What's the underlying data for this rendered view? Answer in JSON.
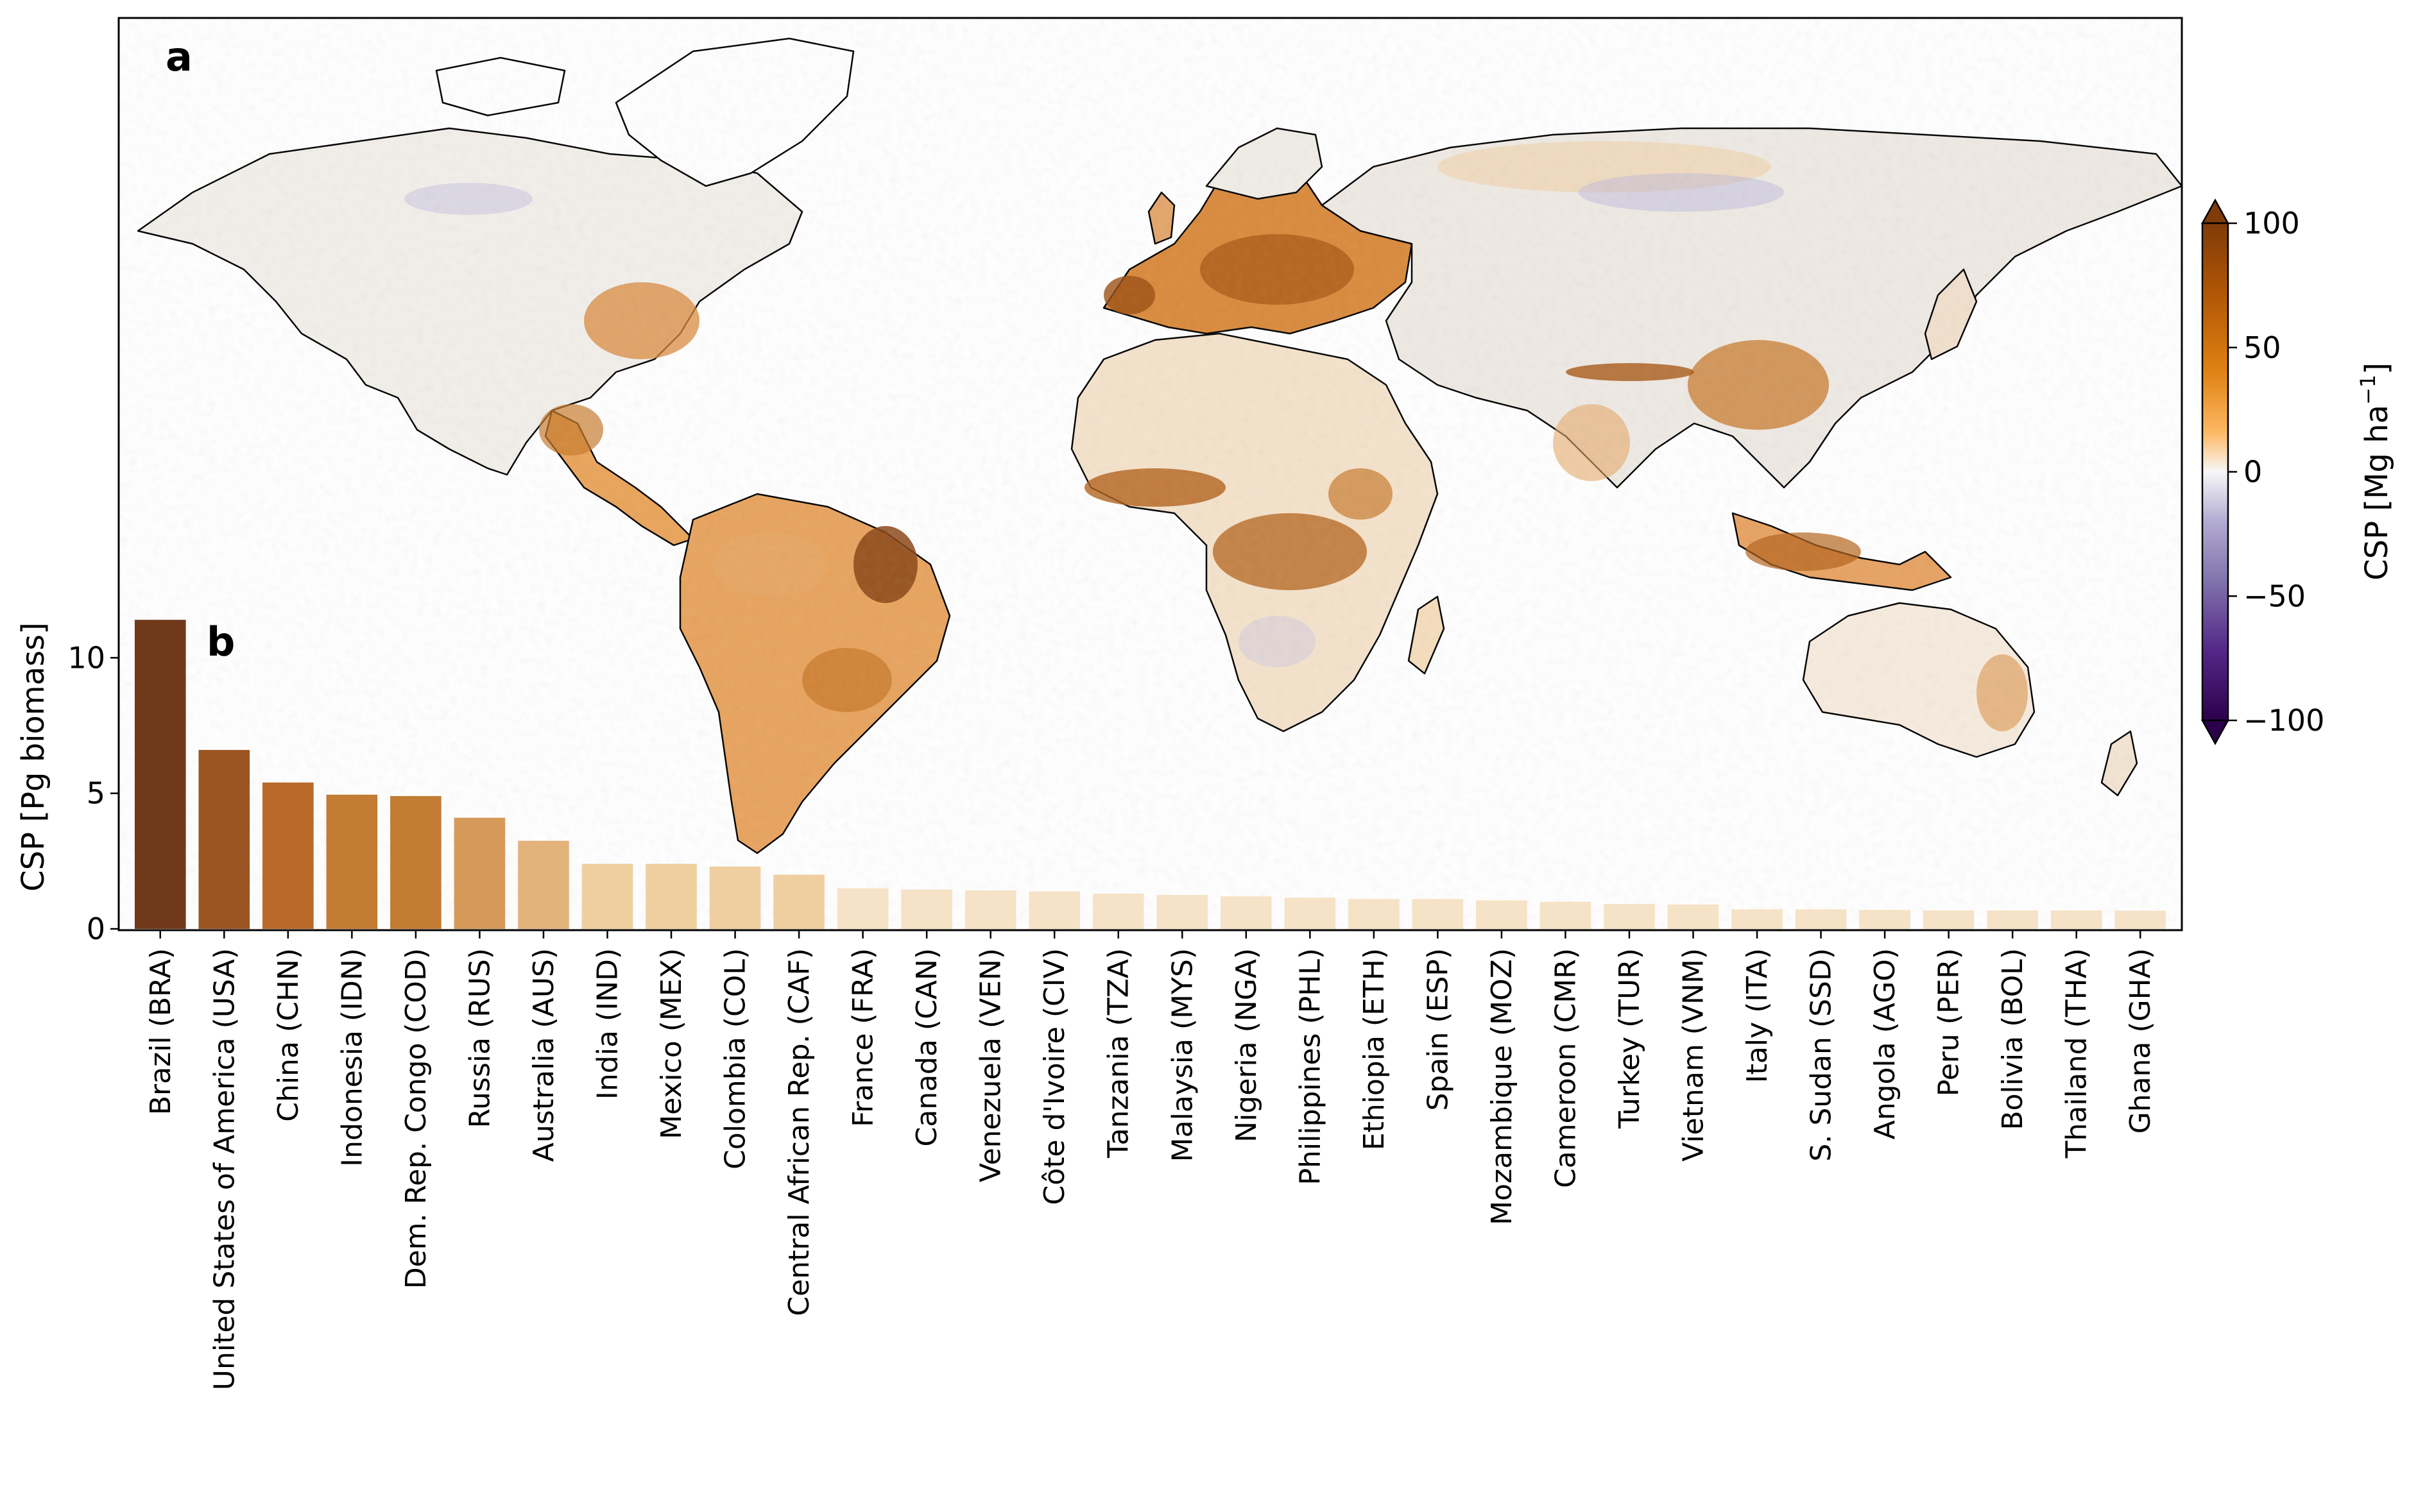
{
  "panel_a_label": "a",
  "panel_b_label": "b",
  "colorbar": {
    "label": "CSP [Mg ha",
    "label_sup": "−1",
    "label_close": "]",
    "ticks": [
      "100",
      "50",
      "0",
      "−50",
      "−100"
    ],
    "tick_values": [
      100,
      50,
      0,
      -50,
      -100
    ],
    "min": -100,
    "max": 100,
    "colors": {
      "high": "#7f3b08",
      "mid": "#f7f7f7",
      "low": "#2d004b"
    }
  },
  "map": {
    "type": "heatmap",
    "description_ref": "global gridded CSP map",
    "colors": {
      "land_outline": "#000000",
      "positive": "#c8782a",
      "negative": "#8080c8"
    }
  },
  "chart_data": {
    "type": "bar",
    "ylabel": "CSP [Pg biomass]",
    "ylim": [
      0,
      11.5
    ],
    "yticks": [
      0,
      5,
      10
    ],
    "ytick_labels": [
      "0",
      "5",
      "10"
    ],
    "categories": [
      "Brazil (BRA)",
      "United States of America (USA)",
      "China (CHN)",
      "Indonesia (IDN)",
      "Dem. Rep. Congo (COD)",
      "Russia (RUS)",
      "Australia (AUS)",
      "India (IND)",
      "Mexico (MEX)",
      "Colombia (COL)",
      "Central African Rep. (CAF)",
      "France (FRA)",
      "Canada (CAN)",
      "Venezuela (VEN)",
      "Côte d'Ivoire (CIV)",
      "Tanzania (TZA)",
      "Malaysia (MYS)",
      "Nigeria (NGA)",
      "Philippines (PHL)",
      "Ethiopia (ETH)",
      "Spain (ESP)",
      "Mozambique (MOZ)",
      "Cameroon (CMR)",
      "Turkey (TUR)",
      "Vietnam (VNM)",
      "Italy (ITA)",
      "S. Sudan (SSD)",
      "Angola (AGO)",
      "Peru (PER)",
      "Bolivia (BOL)",
      "Thailand (THA)",
      "Ghana (GHA)"
    ],
    "values": [
      11.4,
      6.6,
      5.4,
      4.95,
      4.9,
      4.1,
      3.25,
      2.4,
      2.4,
      2.3,
      2.0,
      1.5,
      1.45,
      1.42,
      1.38,
      1.3,
      1.25,
      1.2,
      1.15,
      1.1,
      1.1,
      1.05,
      1.0,
      0.92,
      0.9,
      0.72,
      0.72,
      0.7,
      0.68,
      0.68,
      0.68,
      0.67
    ],
    "bar_colors": [
      "#70391a",
      "#9a5522",
      "#b96a28",
      "#c27c33",
      "#c27c33",
      "#d6995a",
      "#e2b47c",
      "#efcf9f",
      "#efcf9f",
      "#efcf9f",
      "#efcf9f",
      "#f6e2c6",
      "#f6e2c6",
      "#f6e2c6",
      "#f6e2c6",
      "#f6e2c6",
      "#f6e2c6",
      "#f6e2c6",
      "#f6e2c6",
      "#f6e2c6",
      "#f6e2c6",
      "#f6e2c6",
      "#f6e2c6",
      "#f6e2c6",
      "#f6e2c6",
      "#f6e2c6",
      "#f6e2c6",
      "#f6e2c6",
      "#f6e2c6",
      "#f6e2c6",
      "#f6e2c6",
      "#f6e2c6"
    ]
  }
}
